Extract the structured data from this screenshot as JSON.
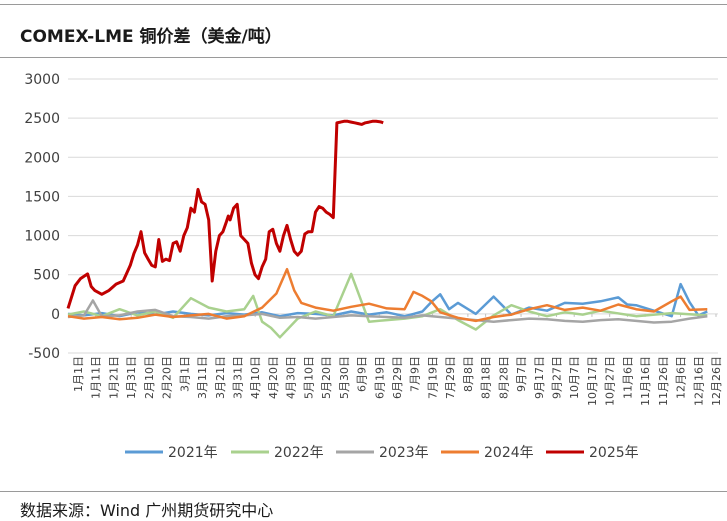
{
  "title": "COMEX-LME 铜价差（美金/吨）",
  "source": "数据来源：Wind  广州期货研究中心",
  "chart_data": {
    "type": "line",
    "title": "COMEX-LME 铜价差（美金/吨）",
    "ylim": [
      -500,
      3000
    ],
    "y_ticks": [
      -500,
      0,
      500,
      1000,
      1500,
      2000,
      2500,
      3000
    ],
    "x_ticks": [
      "1月1日",
      "1月11日",
      "1月21日",
      "1月31日",
      "2月10日",
      "2月20日",
      "3月1日",
      "3月11日",
      "3月21日",
      "3月31日",
      "4月10日",
      "4月20日",
      "4月30日",
      "5月10日",
      "5月20日",
      "5月30日",
      "6月9日",
      "6月19日",
      "6月29日",
      "7月9日",
      "7月19日",
      "7月29日",
      "8月8日",
      "8月18日",
      "8月28日",
      "9月7日",
      "9月17日",
      "9月27日",
      "10月7日",
      "10月17日",
      "10月27日",
      "11月6日",
      "11月16日",
      "11月26日",
      "12月6日",
      "12月16日",
      "12月26日"
    ],
    "grid": true,
    "legend_position": "bottom",
    "series": [
      {
        "name": "2021年",
        "color": "#5b9bd5",
        "x": [
          1,
          10,
          20,
          30,
          40,
          50,
          60,
          70,
          80,
          90,
          100,
          110,
          120,
          130,
          140,
          150,
          160,
          170,
          180,
          190,
          195,
          200,
          205,
          210,
          215,
          220,
          225,
          230,
          240,
          250,
          260,
          270,
          280,
          290,
          300,
          310,
          315,
          320,
          330,
          340,
          345,
          350,
          355,
          360
        ],
        "y": [
          0,
          -20,
          10,
          -30,
          20,
          -10,
          30,
          0,
          -20,
          10,
          -10,
          20,
          -30,
          10,
          0,
          -20,
          30,
          -10,
          20,
          -30,
          0,
          30,
          150,
          250,
          60,
          140,
          70,
          0,
          220,
          -10,
          80,
          40,
          140,
          130,
          160,
          210,
          120,
          110,
          40,
          -30,
          380,
          150,
          -20,
          30
        ]
      },
      {
        "name": "2022年",
        "color": "#a9d18e",
        "x": [
          1,
          10,
          20,
          30,
          40,
          50,
          60,
          70,
          80,
          90,
          100,
          105,
          110,
          115,
          120,
          130,
          140,
          150,
          160,
          170,
          180,
          190,
          200,
          210,
          220,
          230,
          240,
          250,
          260,
          270,
          280,
          290,
          300,
          320,
          340,
          360
        ],
        "y": [
          -10,
          30,
          -30,
          60,
          -20,
          30,
          -50,
          200,
          80,
          30,
          60,
          230,
          -100,
          -180,
          -300,
          -60,
          30,
          -30,
          510,
          -100,
          -80,
          -60,
          -30,
          60,
          -80,
          -200,
          -20,
          110,
          30,
          -30,
          20,
          -10,
          40,
          -30,
          10,
          -20
        ]
      },
      {
        "name": "2023年",
        "color": "#a5a5a5",
        "x": [
          1,
          10,
          15,
          20,
          30,
          40,
          50,
          60,
          70,
          80,
          90,
          100,
          110,
          120,
          130,
          140,
          150,
          160,
          170,
          180,
          190,
          200,
          210,
          220,
          230,
          240,
          250,
          260,
          270,
          280,
          290,
          300,
          310,
          320,
          330,
          340,
          350,
          360
        ],
        "y": [
          -40,
          -20,
          170,
          -30,
          -20,
          30,
          50,
          -30,
          -40,
          -60,
          -30,
          -20,
          0,
          -50,
          -40,
          -60,
          -40,
          -20,
          -30,
          -40,
          -50,
          -20,
          -40,
          -60,
          -80,
          -100,
          -80,
          -60,
          -70,
          -90,
          -100,
          -80,
          -70,
          -90,
          -110,
          -100,
          -60,
          -30
        ]
      },
      {
        "name": "2024年",
        "color": "#ed7d31",
        "x": [
          1,
          10,
          20,
          30,
          40,
          50,
          60,
          70,
          80,
          90,
          100,
          110,
          118,
          124,
          128,
          132,
          140,
          150,
          160,
          170,
          180,
          190,
          195,
          200,
          205,
          210,
          220,
          230,
          240,
          250,
          260,
          270,
          280,
          290,
          300,
          310,
          320,
          330,
          340,
          345,
          350,
          360
        ],
        "y": [
          -30,
          -60,
          -40,
          -70,
          -50,
          -10,
          -40,
          -20,
          0,
          -60,
          -30,
          80,
          260,
          570,
          300,
          140,
          80,
          40,
          90,
          130,
          70,
          60,
          280,
          230,
          160,
          20,
          -50,
          -90,
          -40,
          -10,
          60,
          110,
          50,
          80,
          40,
          120,
          60,
          30,
          160,
          220,
          50,
          60
        ]
      },
      {
        "name": "2025年",
        "color": "#c00000",
        "x": [
          1,
          5,
          8,
          12,
          14,
          16,
          20,
          24,
          28,
          32,
          36,
          38,
          40,
          42,
          44,
          46,
          48,
          50,
          52,
          54,
          56,
          58,
          60,
          62,
          64,
          66,
          68,
          70,
          72,
          74,
          76,
          78,
          80,
          82,
          84,
          86,
          88,
          90,
          91,
          92,
          94,
          96,
          98,
          100,
          102,
          104,
          106,
          108,
          110,
          112,
          114,
          116,
          118,
          120,
          122,
          124,
          126,
          128,
          130,
          132,
          134,
          136,
          138,
          140,
          142,
          144,
          146,
          148,
          150,
          152,
          154,
          156,
          158,
          160,
          162,
          164,
          166,
          168,
          170,
          172,
          174,
          176,
          177,
          178
        ],
        "y": [
          70,
          360,
          450,
          510,
          350,
          300,
          250,
          300,
          380,
          420,
          620,
          770,
          880,
          1050,
          780,
          700,
          620,
          600,
          950,
          670,
          700,
          680,
          900,
          920,
          800,
          1000,
          1100,
          1350,
          1300,
          1590,
          1430,
          1400,
          1200,
          420,
          800,
          1000,
          1050,
          1180,
          1250,
          1200,
          1350,
          1400,
          1000,
          950,
          900,
          650,
          500,
          450,
          600,
          700,
          1050,
          1080,
          900,
          800,
          1000,
          1130,
          950,
          800,
          750,
          800,
          1020,
          1050,
          1050,
          1300,
          1370,
          1350,
          1300,
          1270,
          1230,
          2440,
          2450,
          2460,
          2460,
          2450,
          2440,
          2430,
          2420,
          2440,
          2450,
          2460,
          2460,
          2455,
          2450,
          2440
        ]
      }
    ]
  },
  "legend": {
    "items": [
      {
        "label": "2021年",
        "color": "#5b9bd5"
      },
      {
        "label": "2022年",
        "color": "#a9d18e"
      },
      {
        "label": "2023年",
        "color": "#a5a5a5"
      },
      {
        "label": "2024年",
        "color": "#ed7d31"
      },
      {
        "label": "2025年",
        "color": "#c00000"
      }
    ]
  }
}
